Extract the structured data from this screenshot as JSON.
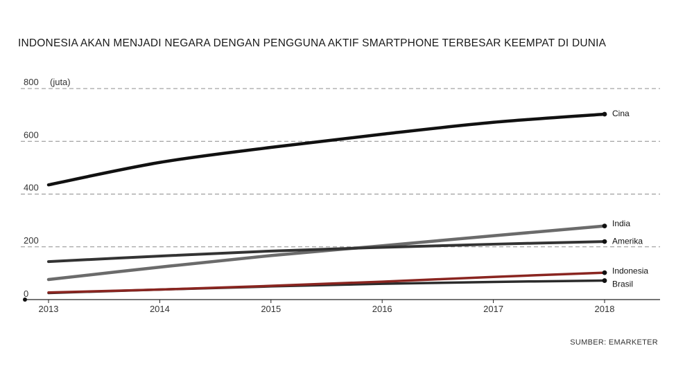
{
  "chart_data": {
    "type": "line",
    "title": "INDONESIA AKAN MENJADI NEGARA DENGAN PENGGUNA AKTIF SMARTPHONE TERBESAR KEEMPAT DI DUNIA",
    "ylabel": "(juta)",
    "source": "SUMBER: EMARKETER",
    "x": [
      "2013",
      "2014",
      "2015",
      "2016",
      "2017",
      "2018"
    ],
    "ylim": [
      0,
      800
    ],
    "yticks": [
      0,
      200,
      400,
      600,
      800
    ],
    "grid": "horizontal-dashed",
    "series": [
      {
        "name": "Cina",
        "values": [
          435,
          520,
          577,
          627,
          672,
          703
        ],
        "color": "#111111"
      },
      {
        "name": "India",
        "values": [
          76,
          123,
          167,
          204,
          242,
          279
        ],
        "color": "#6b6b6b"
      },
      {
        "name": "Amerika",
        "values": [
          144,
          165,
          184,
          198,
          210,
          220
        ],
        "color": "#333333"
      },
      {
        "name": "Indonesia",
        "values": [
          27,
          38,
          52,
          68,
          86,
          102
        ],
        "color": "#8a2520"
      },
      {
        "name": "Brasil",
        "values": [
          25,
          38,
          50,
          60,
          67,
          72
        ],
        "color": "#2b2b2b"
      }
    ]
  }
}
